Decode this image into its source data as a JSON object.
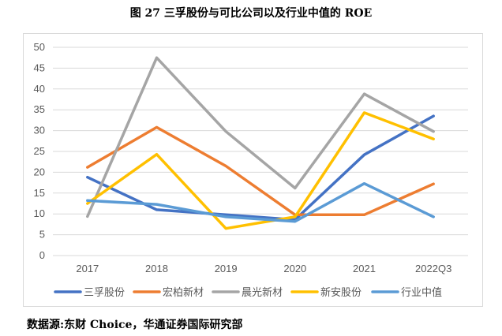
{
  "header": {
    "title": "图 27 三孚股份与可比公司以及行业中值的 ROE"
  },
  "footer": {
    "source": "数据源:东财 Choice，华通证券国际研究部"
  },
  "chart_data": {
    "type": "line",
    "title": "图 27 三孚股份与可比公司以及行业中值的 ROE",
    "xlabel": "",
    "ylabel": "",
    "categories": [
      "2017",
      "2018",
      "2019",
      "2020",
      "2021",
      "2022Q3"
    ],
    "ylim": [
      0,
      50
    ],
    "yticks": [
      0,
      5,
      10,
      15,
      20,
      25,
      30,
      35,
      40,
      45,
      50
    ],
    "grid": true,
    "legend": "bottom",
    "series": [
      {
        "name": "三孚股份",
        "color": "#4472C4",
        "values": [
          18.8,
          11.0,
          9.8,
          8.6,
          24.2,
          33.5
        ]
      },
      {
        "name": "宏柏新材",
        "color": "#ED7D31",
        "values": [
          21.2,
          30.8,
          21.5,
          9.8,
          9.8,
          17.2
        ]
      },
      {
        "name": "晨光新材",
        "color": "#A5A5A5",
        "values": [
          9.4,
          47.5,
          29.8,
          16.2,
          38.8,
          29.8
        ]
      },
      {
        "name": "新安股份",
        "color": "#FFC000",
        "values": [
          12.5,
          24.3,
          6.5,
          9.3,
          34.3,
          28.0
        ]
      },
      {
        "name": "行业中值",
        "color": "#5B9BD5",
        "values": [
          13.2,
          12.3,
          9.3,
          8.2,
          17.3,
          9.3
        ]
      }
    ]
  }
}
